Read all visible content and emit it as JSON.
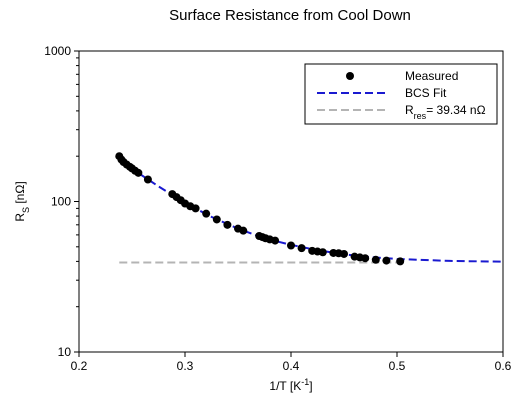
{
  "chart_data": {
    "type": "scatter-line",
    "title": "Surface Resistance from Cool Down",
    "xlabel": [
      {
        "text": "1/T [K"
      },
      {
        "text": "-1",
        "sup": true
      },
      {
        "text": "]"
      }
    ],
    "ylabel": [
      {
        "text": "R"
      },
      {
        "text": "S",
        "sub": true
      },
      {
        "text": " [nΩ]"
      }
    ],
    "xlim": [
      0.2,
      0.6
    ],
    "xticks": [
      0.2,
      0.3,
      0.4,
      0.5,
      0.6
    ],
    "ylim": [
      10,
      1000
    ],
    "yticks": [
      10,
      100,
      1000
    ],
    "ylog": true,
    "series": [
      {
        "name": "Measured",
        "kind": "scatter",
        "color": "#000000",
        "x": [
          0.238,
          0.24,
          0.242,
          0.245,
          0.248,
          0.25,
          0.253,
          0.256,
          0.265,
          0.288,
          0.292,
          0.296,
          0.3,
          0.305,
          0.31,
          0.32,
          0.33,
          0.34,
          0.35,
          0.355,
          0.37,
          0.373,
          0.376,
          0.38,
          0.385,
          0.4,
          0.41,
          0.42,
          0.425,
          0.43,
          0.44,
          0.445,
          0.45,
          0.46,
          0.465,
          0.47,
          0.48,
          0.49,
          0.503
        ],
        "values": [
          200,
          190,
          183,
          176,
          170,
          166,
          160,
          155,
          140,
          112,
          107,
          102,
          97,
          93,
          90,
          83,
          76,
          70,
          66,
          64,
          59,
          58,
          57,
          56,
          55,
          51,
          49,
          47,
          46.5,
          46,
          45.5,
          45.3,
          44.8,
          43,
          42.5,
          42,
          41,
          40.5,
          40
        ]
      },
      {
        "name": "BCS Fit",
        "kind": "line",
        "dash": true,
        "color": "#1a1ad0",
        "x": [
          0.238,
          0.25,
          0.275,
          0.3,
          0.325,
          0.35,
          0.375,
          0.4,
          0.425,
          0.45,
          0.475,
          0.5,
          0.55,
          0.6
        ],
        "values": [
          190,
          165,
          126,
          98,
          79,
          66,
          57,
          51.5,
          47.5,
          44.5,
          42.7,
          41.5,
          40.3,
          39.8
        ]
      },
      {
        "name": [
          {
            "text": "R"
          },
          {
            "text": "res",
            "sub": true
          },
          {
            "text": "= 39.34 nΩ"
          }
        ],
        "kind": "line",
        "dash": true,
        "color": "#b4b4b4",
        "x": [
          0.238,
          0.5
        ],
        "values": [
          39.34,
          39.34
        ]
      }
    ],
    "legend": "top-right"
  }
}
